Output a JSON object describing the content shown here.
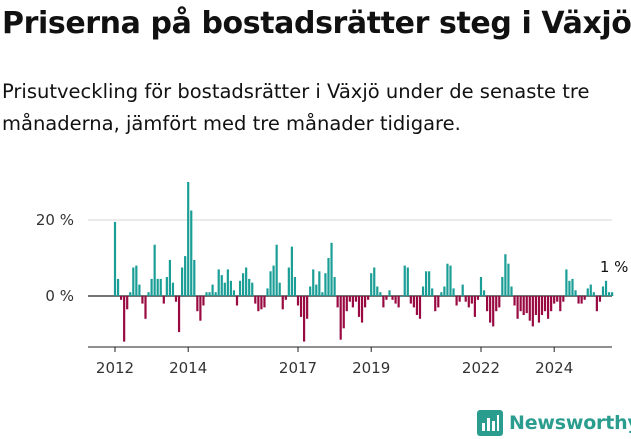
{
  "header": {
    "title": "Priserna på bostadsrätter steg i Växjö",
    "subtitle": "Prisutveckling för bostadsrätter i Växjö under de senaste tre månaderna, jämfört med tre månader tidigare."
  },
  "brand": {
    "name": "Newsworthy"
  },
  "colors": {
    "positive": "#1a9e96",
    "negative": "#990a42",
    "brand": "#2a9d8f"
  },
  "chart_data": {
    "type": "bar",
    "title": "",
    "xlabel": "",
    "ylabel": "",
    "ylim": [
      -14,
      31
    ],
    "y_ticks": [
      {
        "value": 20,
        "label": "20 %"
      },
      {
        "value": 0,
        "label": "0 %"
      }
    ],
    "x_ticks": [
      {
        "value": 2012,
        "label": "2012"
      },
      {
        "value": 2014,
        "label": "2014"
      },
      {
        "value": 2017,
        "label": "2017"
      },
      {
        "value": 2019,
        "label": "2019"
      },
      {
        "value": 2022,
        "label": "2022"
      },
      {
        "value": 2024,
        "label": "2024"
      }
    ],
    "x_start": 2012.0,
    "step": 0.08333,
    "annotation": {
      "label": "1 %"
    },
    "values": [
      19.5,
      4.5,
      -1,
      -12,
      -3.5,
      1,
      7.5,
      8,
      3,
      -2,
      -6,
      1,
      4.5,
      13.5,
      4.5,
      4.5,
      -2,
      5,
      9.5,
      3.5,
      -1.5,
      -9.5,
      7.5,
      10.5,
      30,
      22.5,
      9.5,
      -4,
      -6.5,
      -2.5,
      1,
      1,
      3,
      1,
      7,
      5.5,
      3.5,
      7,
      4,
      1.5,
      -2.5,
      4,
      6,
      7.5,
      4.5,
      3.5,
      -2,
      -4,
      -3.5,
      -3,
      2,
      6.5,
      8,
      13.5,
      3.5,
      -3.5,
      -1,
      7.5,
      13,
      5,
      -2.5,
      -5.5,
      -12,
      -6,
      2.5,
      7,
      3,
      6.5,
      1,
      6,
      10,
      14,
      5,
      -3,
      -11.5,
      -8.5,
      -4,
      -1.5,
      -3,
      -1.5,
      -5.5,
      -7,
      -3,
      -1,
      6,
      7.5,
      2.5,
      1,
      -3,
      -1,
      1.5,
      -1,
      -2,
      -3,
      0,
      8,
      7.5,
      -2,
      -3,
      -5,
      -6,
      2.5,
      6.5,
      6.5,
      2,
      -4,
      -3,
      1,
      2.5,
      8.5,
      8,
      2,
      -2.5,
      -1.5,
      3,
      -1.5,
      -3,
      -2,
      -5.5,
      -1,
      5,
      1.5,
      -4,
      -7,
      -8,
      -4,
      -3,
      5,
      11,
      8.5,
      2.5,
      -2.5,
      -6,
      -4,
      -5,
      -4.5,
      -6.5,
      -8,
      -5,
      -7,
      -5,
      -4,
      -6,
      -4,
      -2,
      -1.5,
      -4,
      -1.5,
      7,
      4,
      4.5,
      1.5,
      -2,
      -2,
      -1,
      2,
      3,
      1,
      -4,
      -1.5,
      2.5,
      4,
      1,
      1
    ]
  }
}
